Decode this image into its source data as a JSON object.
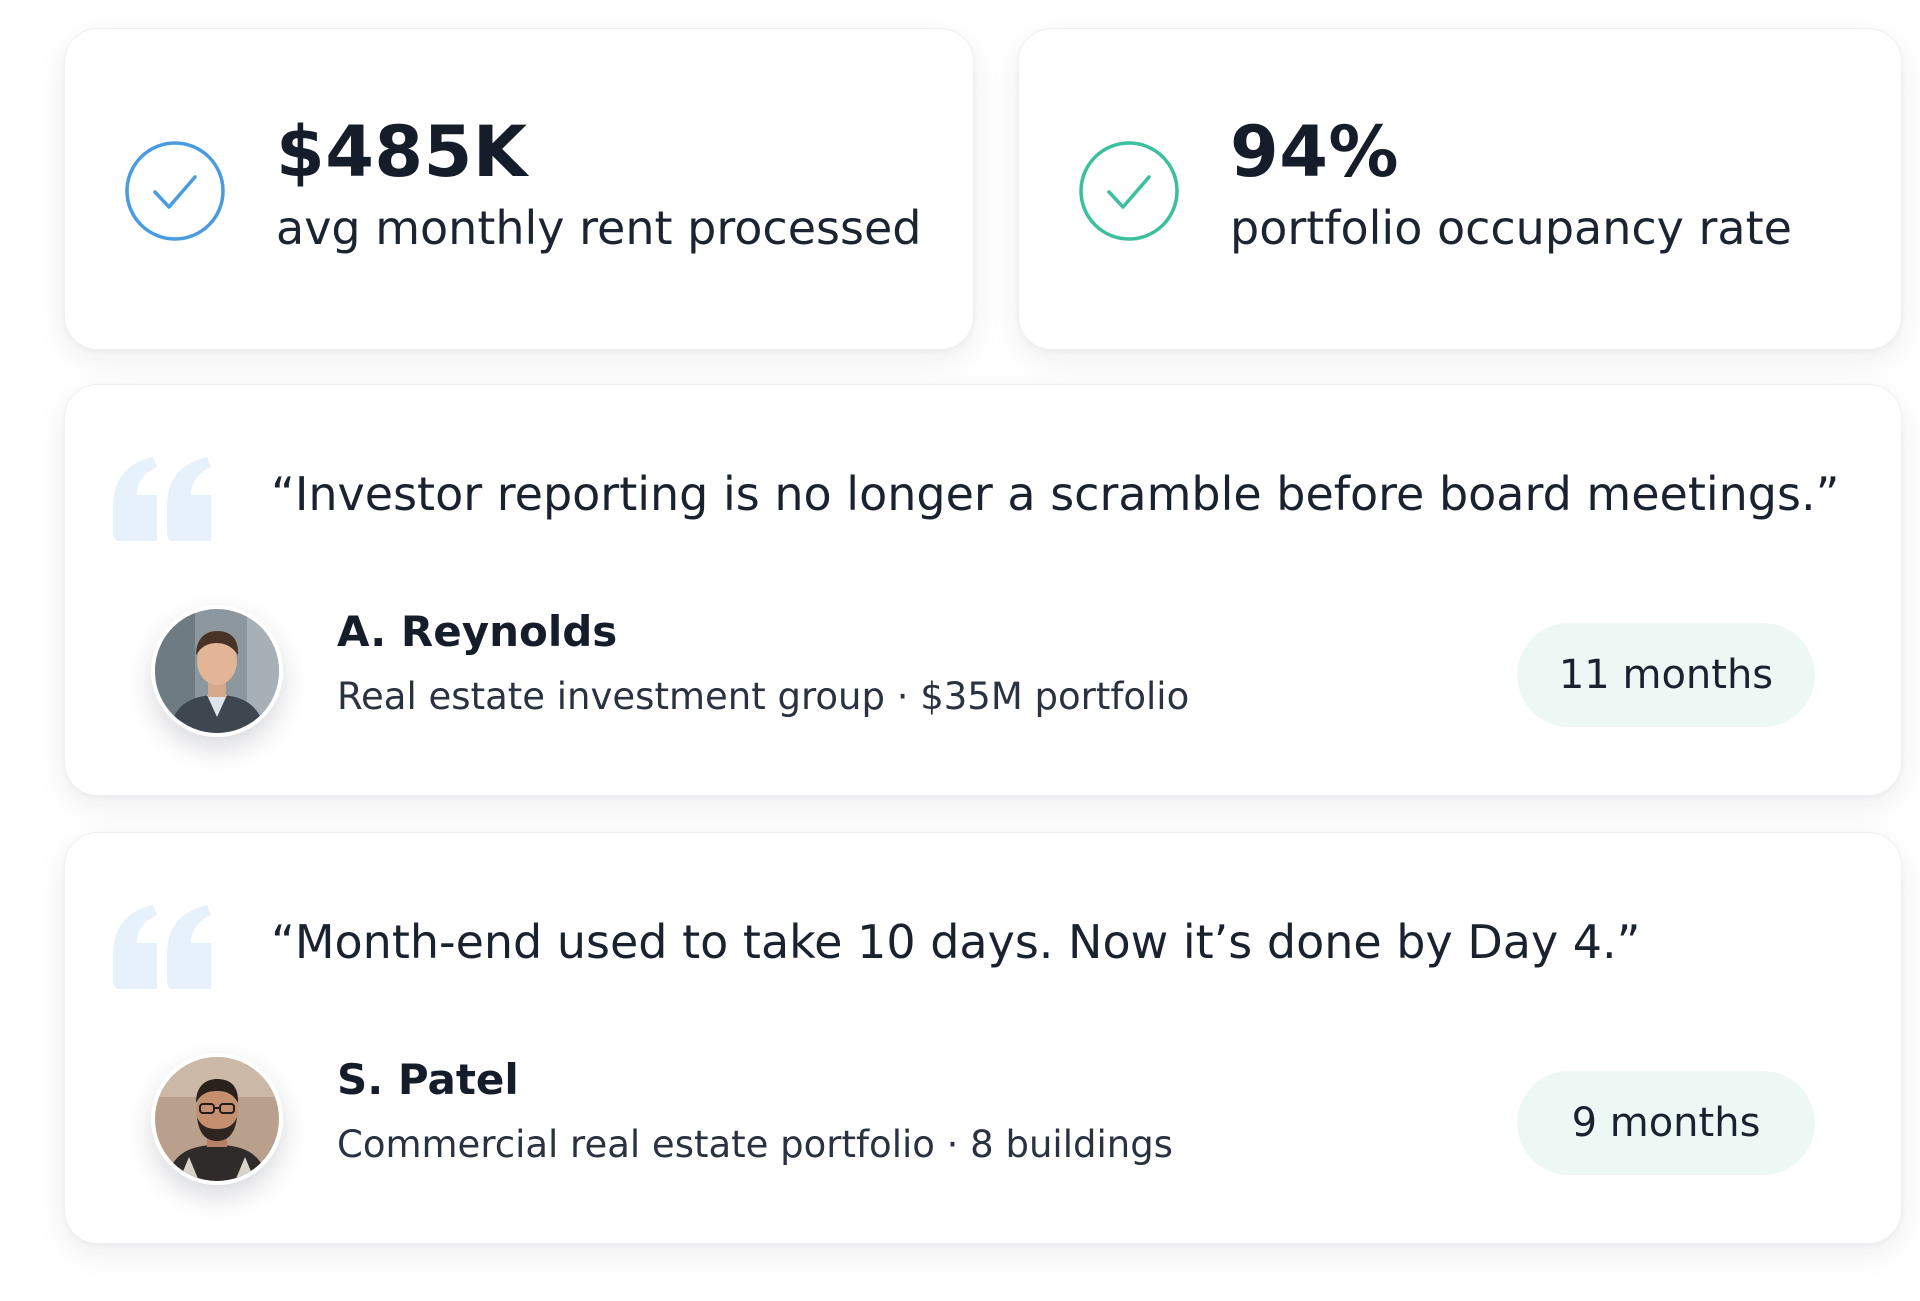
{
  "stats": [
    {
      "icon": "check-circle-icon",
      "icon_color": "#4a9be0",
      "value": "$485K",
      "label": "avg monthly rent processed"
    },
    {
      "icon": "check-circle-icon",
      "icon_color": "#3bbf9c",
      "value": "94%",
      "label": "portfolio occupancy rate"
    }
  ],
  "testimonials": [
    {
      "quote": "“Investor reporting is no longer a scramble before board meetings.”",
      "name": "A. Reynolds",
      "detail": "Real estate investment group · $35M portfolio",
      "duration": "11 months",
      "avatar_icon": "person-avatar"
    },
    {
      "quote": "“Month-end used to take 10 days. Now it’s done by Day 4.”",
      "name": "S. Patel",
      "detail": "Commercial real estate portfolio · 8 buildings",
      "duration": "9 months",
      "avatar_icon": "person-avatar"
    }
  ],
  "colors": {
    "quote_mark": "#e6f1fb",
    "badge_background": "#edf8f5",
    "text_primary": "#151d2b"
  }
}
